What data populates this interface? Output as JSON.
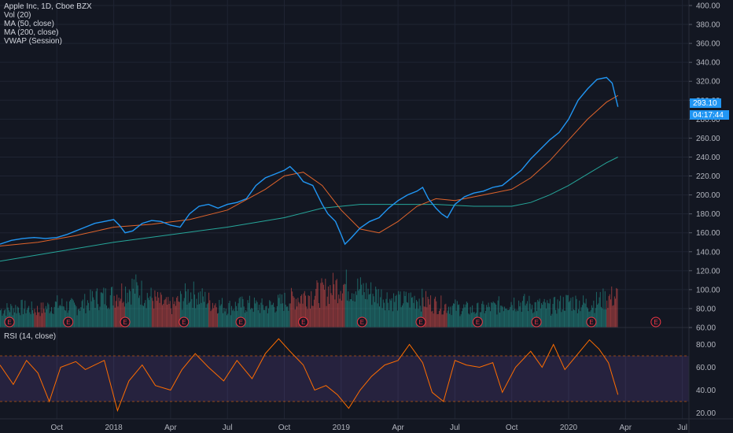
{
  "header": {
    "symbol_line": "Apple Inc, 1D, Cboe BZX",
    "indicators": [
      "Vol (20)",
      "MA (50, close)",
      "MA (200, close)",
      "VWAP (Session)"
    ]
  },
  "rsi_panel": {
    "label": "RSI (14, close)"
  },
  "price_badge": {
    "value": "293.10",
    "countdown": "04:17:44"
  },
  "earnings_marker_label": "E",
  "colors": {
    "background": "#131722",
    "grid": "#1f2433",
    "price_line": "#2196f3",
    "ma50": "#e0642b",
    "ma200": "#26a69a",
    "vol_up": "#26a69a",
    "vol_down": "#ef5350",
    "rsi_line": "#ff6d00",
    "rsi_band": "#7e57c2",
    "badge": "#2196f3"
  },
  "chart_data": [
    {
      "type": "line",
      "title": "",
      "series_names": [],
      "y_ticks": [
        "400.00",
        "380.00",
        "360.00",
        "340.00",
        "320.00",
        "300.00",
        "280.00",
        "260.00",
        "240.00",
        "220.00",
        "200.00",
        "180.00",
        "160.00",
        "140.00",
        "120.00",
        "100.00",
        "80.00",
        "60.00"
      ],
      "ylim": [
        60,
        400
      ],
      "x_ticks": [
        "Oct",
        "2018",
        "Apr",
        "Jul",
        "Oct",
        "2019",
        "Apr",
        "Jul",
        "Oct",
        "2020",
        "Apr",
        "Jul"
      ],
      "x_tick_months": [
        3,
        6,
        9,
        12,
        15,
        18,
        21,
        24,
        27,
        30,
        33,
        36
      ],
      "x_unit": "months since Jul 2017",
      "price": [
        [
          0,
          148
        ],
        [
          0.6,
          152
        ],
        [
          1.2,
          154
        ],
        [
          1.8,
          155
        ],
        [
          2.4,
          154
        ],
        [
          3,
          155
        ],
        [
          3.5,
          158
        ],
        [
          4,
          162
        ],
        [
          4.5,
          166
        ],
        [
          5,
          170
        ],
        [
          5.5,
          172
        ],
        [
          6,
          174
        ],
        [
          6.3,
          168
        ],
        [
          6.6,
          160
        ],
        [
          7,
          162
        ],
        [
          7.5,
          170
        ],
        [
          8,
          173
        ],
        [
          8.5,
          172
        ],
        [
          9,
          168
        ],
        [
          9.5,
          166
        ],
        [
          10,
          180
        ],
        [
          10.5,
          188
        ],
        [
          11,
          190
        ],
        [
          11.5,
          186
        ],
        [
          12,
          190
        ],
        [
          12.5,
          192
        ],
        [
          13,
          196
        ],
        [
          13.5,
          210
        ],
        [
          14,
          218
        ],
        [
          14.5,
          222
        ],
        [
          15,
          226
        ],
        [
          15.3,
          230
        ],
        [
          15.7,
          222
        ],
        [
          16,
          214
        ],
        [
          16.5,
          210
        ],
        [
          17,
          190
        ],
        [
          17.3,
          180
        ],
        [
          17.7,
          172
        ],
        [
          18,
          158
        ],
        [
          18.2,
          148
        ],
        [
          18.5,
          154
        ],
        [
          19,
          165
        ],
        [
          19.5,
          172
        ],
        [
          20,
          176
        ],
        [
          20.5,
          186
        ],
        [
          21,
          194
        ],
        [
          21.5,
          200
        ],
        [
          22,
          204
        ],
        [
          22.3,
          208
        ],
        [
          22.6,
          196
        ],
        [
          23,
          186
        ],
        [
          23.3,
          180
        ],
        [
          23.6,
          176
        ],
        [
          24,
          190
        ],
        [
          24.5,
          198
        ],
        [
          25,
          202
        ],
        [
          25.5,
          204
        ],
        [
          26,
          208
        ],
        [
          26.5,
          210
        ],
        [
          27,
          218
        ],
        [
          27.5,
          226
        ],
        [
          28,
          238
        ],
        [
          28.5,
          248
        ],
        [
          29,
          258
        ],
        [
          29.5,
          266
        ],
        [
          30,
          280
        ],
        [
          30.5,
          300
        ],
        [
          31,
          312
        ],
        [
          31.5,
          322
        ],
        [
          32,
          324
        ],
        [
          32.3,
          318
        ],
        [
          32.6,
          293
        ]
      ],
      "ma50": [
        [
          0,
          146
        ],
        [
          2,
          150
        ],
        [
          4,
          157
        ],
        [
          6,
          166
        ],
        [
          8,
          169
        ],
        [
          10,
          174
        ],
        [
          12,
          184
        ],
        [
          14,
          206
        ],
        [
          15,
          220
        ],
        [
          16,
          224
        ],
        [
          17,
          210
        ],
        [
          18,
          184
        ],
        [
          19,
          164
        ],
        [
          20,
          160
        ],
        [
          21,
          172
        ],
        [
          22,
          188
        ],
        [
          23,
          196
        ],
        [
          24,
          194
        ],
        [
          25,
          198
        ],
        [
          26,
          202
        ],
        [
          27,
          206
        ],
        [
          28,
          218
        ],
        [
          29,
          236
        ],
        [
          30,
          258
        ],
        [
          31,
          280
        ],
        [
          32,
          298
        ],
        [
          32.6,
          305
        ]
      ],
      "ma200": [
        [
          0,
          130
        ],
        [
          3,
          140
        ],
        [
          6,
          150
        ],
        [
          9,
          158
        ],
        [
          12,
          166
        ],
        [
          15,
          176
        ],
        [
          17,
          186
        ],
        [
          19,
          190
        ],
        [
          21,
          190
        ],
        [
          23,
          190
        ],
        [
          25,
          188
        ],
        [
          27,
          188
        ],
        [
          28,
          192
        ],
        [
          29,
          200
        ],
        [
          30,
          210
        ],
        [
          31,
          222
        ],
        [
          32,
          234
        ],
        [
          32.6,
          240
        ]
      ],
      "annotations": {
        "last_price": "293.10",
        "bar_countdown": "04:17:44",
        "earnings_months": [
          0.5,
          3.6,
          6.6,
          9.7,
          12.7,
          16,
          19.1,
          22.2,
          25.2,
          28.3,
          31.2,
          34.6
        ]
      }
    },
    {
      "type": "bar",
      "title": "",
      "volume_profile": [
        [
          0,
          0.3
        ],
        [
          1,
          0.35
        ],
        [
          2,
          0.3
        ],
        [
          3,
          0.4
        ],
        [
          4,
          0.35
        ],
        [
          5,
          0.5
        ],
        [
          6,
          0.55
        ],
        [
          7,
          0.7
        ],
        [
          8,
          0.5
        ],
        [
          9,
          0.35
        ],
        [
          10,
          0.6
        ],
        [
          11,
          0.45
        ],
        [
          12,
          0.35
        ],
        [
          13,
          0.4
        ],
        [
          14,
          0.35
        ],
        [
          15,
          0.45
        ],
        [
          16,
          0.55
        ],
        [
          17,
          0.6
        ],
        [
          18,
          0.75
        ],
        [
          19,
          0.65
        ],
        [
          20,
          0.55
        ],
        [
          21,
          0.45
        ],
        [
          22,
          0.5
        ],
        [
          23,
          0.4
        ],
        [
          24,
          0.35
        ],
        [
          25,
          0.3
        ],
        [
          26,
          0.35
        ],
        [
          27,
          0.45
        ],
        [
          28,
          0.4
        ],
        [
          29,
          0.35
        ],
        [
          30,
          0.45
        ],
        [
          31,
          0.4
        ],
        [
          32,
          0.5
        ],
        [
          32.6,
          0.55
        ]
      ]
    },
    {
      "type": "line",
      "title": "",
      "y_ticks": [
        "80.00",
        "60.00",
        "40.00",
        "20.00"
      ],
      "ylim": [
        15,
        90
      ],
      "bands": [
        30,
        70
      ],
      "rsi": [
        [
          0,
          62
        ],
        [
          0.7,
          45
        ],
        [
          1.4,
          66
        ],
        [
          2,
          55
        ],
        [
          2.6,
          30
        ],
        [
          3.2,
          60
        ],
        [
          4,
          65
        ],
        [
          4.5,
          58
        ],
        [
          5,
          62
        ],
        [
          5.5,
          66
        ],
        [
          6.2,
          22
        ],
        [
          6.8,
          48
        ],
        [
          7.5,
          62
        ],
        [
          8.2,
          44
        ],
        [
          9,
          40
        ],
        [
          9.6,
          58
        ],
        [
          10.3,
          72
        ],
        [
          11,
          60
        ],
        [
          11.8,
          48
        ],
        [
          12.5,
          66
        ],
        [
          13.3,
          50
        ],
        [
          14,
          72
        ],
        [
          14.7,
          85
        ],
        [
          15.3,
          74
        ],
        [
          16,
          62
        ],
        [
          16.6,
          40
        ],
        [
          17.2,
          44
        ],
        [
          17.8,
          36
        ],
        [
          18.4,
          24
        ],
        [
          19,
          40
        ],
        [
          19.6,
          52
        ],
        [
          20.3,
          62
        ],
        [
          21,
          66
        ],
        [
          21.6,
          80
        ],
        [
          22.3,
          64
        ],
        [
          22.8,
          38
        ],
        [
          23.4,
          30
        ],
        [
          24,
          66
        ],
        [
          24.6,
          62
        ],
        [
          25.3,
          60
        ],
        [
          26,
          64
        ],
        [
          26.5,
          38
        ],
        [
          27.2,
          60
        ],
        [
          28,
          74
        ],
        [
          28.6,
          60
        ],
        [
          29.2,
          80
        ],
        [
          29.8,
          58
        ],
        [
          30.5,
          72
        ],
        [
          31.1,
          84
        ],
        [
          31.6,
          76
        ],
        [
          32.1,
          64
        ],
        [
          32.6,
          36
        ]
      ]
    }
  ]
}
